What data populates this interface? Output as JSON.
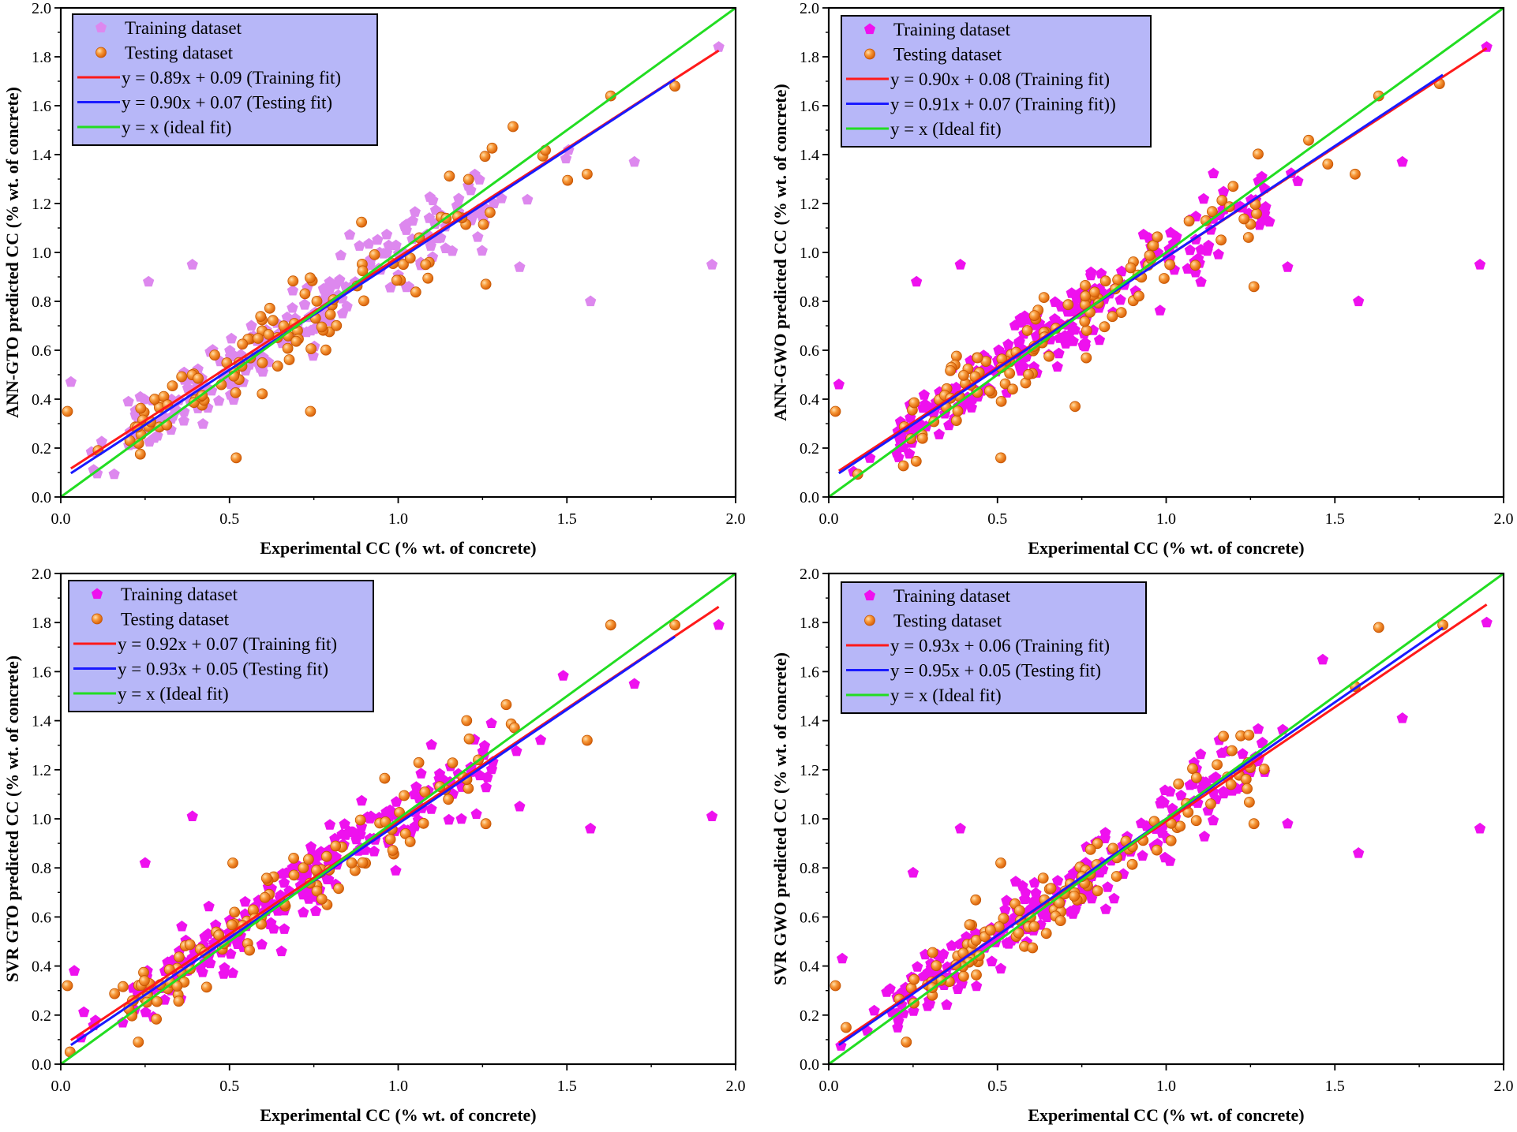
{
  "chart_data": [
    {
      "type": "scatter",
      "panel": "top-left",
      "xlabel": "Experimental CC (% wt. of concrete)",
      "ylabel": "ANN-GTO predicted CC (% wt. of concrete)",
      "xlim": [
        0,
        2.0
      ],
      "ylim": [
        0,
        2.0
      ],
      "xticks": [
        "0.0",
        "0.5",
        "1.0",
        "1.5",
        "2.0"
      ],
      "yticks": [
        "0.0",
        "0.2",
        "0.4",
        "0.6",
        "0.8",
        "1.0",
        "1.2",
        "1.4",
        "1.6",
        "1.8",
        "2.0"
      ],
      "legend_position": "top-left",
      "series": [
        {
          "name": "Training dataset",
          "kind": "scatter",
          "marker": "pentagon",
          "color": "#dd88ee",
          "seed": 11,
          "n": 230,
          "slope": 0.89,
          "intercept": 0.09
        },
        {
          "name": "Testing dataset",
          "kind": "scatter",
          "marker": "sphere",
          "color": "#f58220",
          "seed": 23,
          "n": 110,
          "slope": 0.9,
          "intercept": 0.07
        },
        {
          "name": "y = 0.89x + 0.09 (Training fit)",
          "kind": "line",
          "color": "#ff1a1a",
          "slope": 0.89,
          "intercept": 0.09,
          "x_range": [
            0.03,
            1.95
          ]
        },
        {
          "name": "y = 0.90x + 0.07 (Testing fit)",
          "kind": "line",
          "color": "#1a1aff",
          "slope": 0.9,
          "intercept": 0.07,
          "x_range": [
            0.03,
            1.82
          ]
        },
        {
          "name": "y = x (ideal fit)",
          "kind": "line",
          "color": "#22dd22",
          "slope": 1.0,
          "intercept": 0.0,
          "x_range": [
            0,
            2.0
          ]
        }
      ],
      "outliers": [
        {
          "x": 0.26,
          "y": 0.88,
          "series": 0
        },
        {
          "x": 0.39,
          "y": 0.95,
          "series": 0
        },
        {
          "x": 0.52,
          "y": 0.16,
          "series": 1
        },
        {
          "x": 0.74,
          "y": 0.35,
          "series": 1
        },
        {
          "x": 1.57,
          "y": 0.8,
          "series": 0
        },
        {
          "x": 1.93,
          "y": 0.95,
          "series": 0
        },
        {
          "x": 1.95,
          "y": 1.84,
          "series": 0
        },
        {
          "x": 1.82,
          "y": 1.68,
          "series": 1
        },
        {
          "x": 1.63,
          "y": 1.64,
          "series": 1
        },
        {
          "x": 1.7,
          "y": 1.37,
          "series": 0
        },
        {
          "x": 1.56,
          "y": 1.32,
          "series": 1
        },
        {
          "x": 0.02,
          "y": 0.35,
          "series": 1
        },
        {
          "x": 0.03,
          "y": 0.47,
          "series": 0
        },
        {
          "x": 1.26,
          "y": 0.87,
          "series": 1
        },
        {
          "x": 1.36,
          "y": 0.94,
          "series": 0
        }
      ]
    },
    {
      "type": "scatter",
      "panel": "top-right",
      "xlabel": "Experimental CC (% wt. of concrete)",
      "ylabel": "ANN-GWO predicted CC (% wt. of concrete)",
      "xlim": [
        0,
        2.0
      ],
      "ylim": [
        0,
        2.0
      ],
      "xticks": [
        "0.0",
        "0.5",
        "1.0",
        "1.5",
        "2.0"
      ],
      "yticks": [
        "0.0",
        "0.2",
        "0.4",
        "0.6",
        "0.8",
        "1.0",
        "1.2",
        "1.4",
        "1.6",
        "1.8",
        "2.0"
      ],
      "legend_position": "top-left",
      "series": [
        {
          "name": "Training dataset",
          "kind": "scatter",
          "marker": "pentagon",
          "color": "#ee11ee",
          "seed": 37,
          "n": 230,
          "slope": 0.9,
          "intercept": 0.08
        },
        {
          "name": "Testing dataset",
          "kind": "scatter",
          "marker": "sphere",
          "color": "#f58220",
          "seed": 41,
          "n": 110,
          "slope": 0.91,
          "intercept": 0.07
        },
        {
          "name": "y = 0.90x + 0.08 (Training fit)",
          "kind": "line",
          "color": "#ff1a1a",
          "slope": 0.9,
          "intercept": 0.08,
          "x_range": [
            0.03,
            1.95
          ]
        },
        {
          "name": "y = 0.91x + 0.07 (Training fit))",
          "kind": "line",
          "color": "#1a1aff",
          "slope": 0.91,
          "intercept": 0.07,
          "x_range": [
            0.03,
            1.82
          ]
        },
        {
          "name": "y = x (Ideal fit)",
          "kind": "line",
          "color": "#22dd22",
          "slope": 1.0,
          "intercept": 0.0,
          "x_range": [
            0,
            2.0
          ]
        }
      ],
      "outliers": [
        {
          "x": 0.26,
          "y": 0.88,
          "series": 0
        },
        {
          "x": 0.39,
          "y": 0.95,
          "series": 0
        },
        {
          "x": 0.51,
          "y": 0.16,
          "series": 1
        },
        {
          "x": 0.73,
          "y": 0.37,
          "series": 1
        },
        {
          "x": 1.57,
          "y": 0.8,
          "series": 0
        },
        {
          "x": 1.93,
          "y": 0.95,
          "series": 0
        },
        {
          "x": 1.95,
          "y": 1.84,
          "series": 0
        },
        {
          "x": 1.81,
          "y": 1.69,
          "series": 1
        },
        {
          "x": 1.63,
          "y": 1.64,
          "series": 1
        },
        {
          "x": 1.7,
          "y": 1.37,
          "series": 0
        },
        {
          "x": 1.56,
          "y": 1.32,
          "series": 1
        },
        {
          "x": 0.02,
          "y": 0.35,
          "series": 1
        },
        {
          "x": 0.03,
          "y": 0.46,
          "series": 0
        },
        {
          "x": 1.26,
          "y": 0.86,
          "series": 1
        },
        {
          "x": 1.36,
          "y": 0.94,
          "series": 0
        }
      ]
    },
    {
      "type": "scatter",
      "panel": "bottom-left",
      "xlabel": "Experimental CC (% wt. of concrete)",
      "ylabel": "SVR GTO predicted CC (% wt. of concrete)",
      "xlim": [
        0,
        2.0
      ],
      "ylim": [
        0,
        2.0
      ],
      "xticks": [
        "0.0",
        "0.5",
        "1.0",
        "1.5",
        "2.0"
      ],
      "yticks": [
        "0.0",
        "0.2",
        "0.4",
        "0.6",
        "0.8",
        "1.0",
        "1.2",
        "1.4",
        "1.6",
        "1.8",
        "2.0"
      ],
      "legend_position": "top-left",
      "series": [
        {
          "name": "Training dataset",
          "kind": "scatter",
          "marker": "pentagon",
          "color": "#ee11ee",
          "seed": 53,
          "n": 230,
          "slope": 0.92,
          "intercept": 0.07
        },
        {
          "name": "Testing dataset",
          "kind": "scatter",
          "marker": "sphere",
          "color": "#f58220",
          "seed": 67,
          "n": 110,
          "slope": 0.93,
          "intercept": 0.05
        },
        {
          "name": "y = 0.92x + 0.07 (Training fit)",
          "kind": "line",
          "color": "#ff1a1a",
          "slope": 0.92,
          "intercept": 0.07,
          "x_range": [
            0.03,
            1.95
          ]
        },
        {
          "name": "y = 0.93x + 0.05 (Testing fit)",
          "kind": "line",
          "color": "#1a1aff",
          "slope": 0.93,
          "intercept": 0.05,
          "x_range": [
            0.03,
            1.82
          ]
        },
        {
          "name": "y = x (Ideal fit)",
          "kind": "line",
          "color": "#22dd22",
          "slope": 1.0,
          "intercept": 0.0,
          "x_range": [
            0,
            2.0
          ]
        }
      ],
      "outliers": [
        {
          "x": 0.25,
          "y": 0.82,
          "series": 0
        },
        {
          "x": 0.39,
          "y": 1.01,
          "series": 0
        },
        {
          "x": 0.51,
          "y": 0.82,
          "series": 1
        },
        {
          "x": 0.23,
          "y": 0.09,
          "series": 1
        },
        {
          "x": 1.57,
          "y": 0.96,
          "series": 0
        },
        {
          "x": 1.93,
          "y": 1.01,
          "series": 0
        },
        {
          "x": 1.95,
          "y": 1.79,
          "series": 0
        },
        {
          "x": 1.82,
          "y": 1.79,
          "series": 1
        },
        {
          "x": 1.63,
          "y": 1.79,
          "series": 1
        },
        {
          "x": 1.7,
          "y": 1.55,
          "series": 0
        },
        {
          "x": 1.56,
          "y": 1.32,
          "series": 1
        },
        {
          "x": 0.02,
          "y": 0.32,
          "series": 1
        },
        {
          "x": 0.04,
          "y": 0.38,
          "series": 0
        },
        {
          "x": 1.26,
          "y": 0.98,
          "series": 1
        },
        {
          "x": 1.36,
          "y": 1.05,
          "series": 0
        }
      ]
    },
    {
      "type": "scatter",
      "panel": "bottom-right",
      "xlabel": "Experimental CC (% wt. of concrete)",
      "ylabel": "SVR GWO predicted CC (% wt. of concrete)",
      "xlim": [
        0,
        2.0
      ],
      "ylim": [
        0,
        2.0
      ],
      "xticks": [
        "0.0",
        "0.5",
        "1.0",
        "1.5",
        "2.0"
      ],
      "yticks": [
        "0.0",
        "0.2",
        "0.4",
        "0.6",
        "0.8",
        "1.0",
        "1.2",
        "1.4",
        "1.6",
        "1.8",
        "2.0"
      ],
      "legend_position": "top-left",
      "series": [
        {
          "name": "Training dataset",
          "kind": "scatter",
          "marker": "pentagon",
          "color": "#ee11ee",
          "seed": 71,
          "n": 230,
          "slope": 0.93,
          "intercept": 0.06
        },
        {
          "name": "Testing dataset",
          "kind": "scatter",
          "marker": "sphere",
          "color": "#f58220",
          "seed": 89,
          "n": 110,
          "slope": 0.95,
          "intercept": 0.05
        },
        {
          "name": "y = 0.93x + 0.06 (Training fit)",
          "kind": "line",
          "color": "#ff1a1a",
          "slope": 0.93,
          "intercept": 0.06,
          "x_range": [
            0.03,
            1.95
          ]
        },
        {
          "name": "y = 0.95x + 0.05 (Testing fit)",
          "kind": "line",
          "color": "#1a1aff",
          "slope": 0.95,
          "intercept": 0.05,
          "x_range": [
            0.03,
            1.82
          ]
        },
        {
          "name": "y = x (Ideal fit)",
          "kind": "line",
          "color": "#22dd22",
          "slope": 1.0,
          "intercept": 0.0,
          "x_range": [
            0,
            2.0
          ]
        }
      ],
      "outliers": [
        {
          "x": 0.25,
          "y": 0.78,
          "series": 0
        },
        {
          "x": 0.39,
          "y": 0.96,
          "series": 0
        },
        {
          "x": 0.51,
          "y": 0.82,
          "series": 1
        },
        {
          "x": 0.23,
          "y": 0.09,
          "series": 1
        },
        {
          "x": 1.57,
          "y": 0.86,
          "series": 0
        },
        {
          "x": 1.93,
          "y": 0.96,
          "series": 0
        },
        {
          "x": 1.95,
          "y": 1.8,
          "series": 0
        },
        {
          "x": 1.82,
          "y": 1.79,
          "series": 1
        },
        {
          "x": 1.63,
          "y": 1.78,
          "series": 1
        },
        {
          "x": 1.7,
          "y": 1.41,
          "series": 0
        },
        {
          "x": 1.56,
          "y": 1.54,
          "series": 1
        },
        {
          "x": 0.02,
          "y": 0.32,
          "series": 1
        },
        {
          "x": 0.04,
          "y": 0.43,
          "series": 0
        },
        {
          "x": 1.26,
          "y": 0.98,
          "series": 1
        },
        {
          "x": 1.36,
          "y": 0.98,
          "series": 0
        }
      ]
    }
  ]
}
